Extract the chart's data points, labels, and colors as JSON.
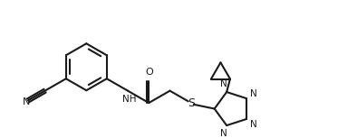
{
  "background_color": "#ffffff",
  "line_color": "#1a1a1a",
  "line_width": 1.5,
  "fig_width": 3.94,
  "fig_height": 1.53,
  "dpi": 100,
  "xlim": [
    0,
    7.8
  ],
  "ylim": [
    -0.5,
    2.8
  ]
}
